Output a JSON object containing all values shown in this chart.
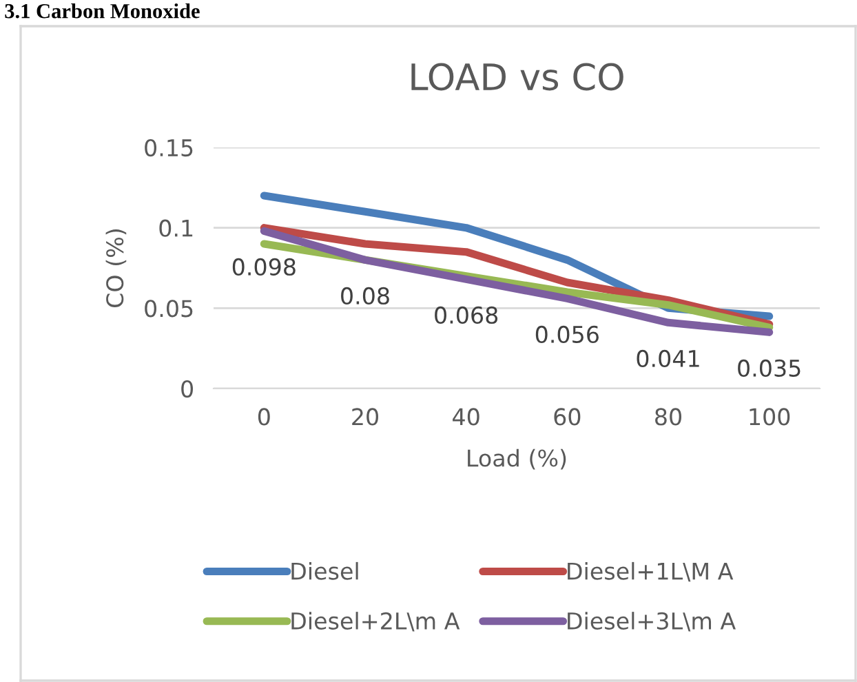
{
  "chart_data": {
    "type": "line",
    "title": "LOAD vs CO",
    "xlabel": "Load (%)",
    "ylabel": "CO (%)",
    "annotations": [
      "3.1 Carbon Monoxide"
    ],
    "categories": [
      "0",
      "20",
      "40",
      "60",
      "80",
      "100"
    ],
    "ylim": [
      0,
      0.15
    ],
    "yticks": [
      0,
      0.05,
      0.1,
      0.15
    ],
    "grid": "y",
    "legend": "bottom",
    "marker": "none",
    "line_style": "solid",
    "series": [
      {
        "name": "Diesel",
        "color": "#4a7ebb",
        "values": [
          0.12,
          0.11,
          0.1,
          0.08,
          0.05,
          0.045
        ]
      },
      {
        "name": "Diesel+1L\\M A",
        "color": "#be4b48",
        "values": [
          0.1,
          0.09,
          0.085,
          0.066,
          0.055,
          0.04
        ]
      },
      {
        "name": "Diesel+2L\\m A",
        "color": "#98b954",
        "values": [
          0.09,
          0.08,
          0.07,
          0.06,
          0.052,
          0.038
        ]
      },
      {
        "name": "Diesel+3L\\m A",
        "color": "#7d5fa0",
        "values": [
          0.098,
          0.08,
          0.068,
          0.056,
          0.041,
          0.035
        ],
        "value_labels": [
          "0.098",
          "0.08",
          "0.068",
          "0.056",
          "0.041",
          "0.035"
        ]
      }
    ]
  }
}
